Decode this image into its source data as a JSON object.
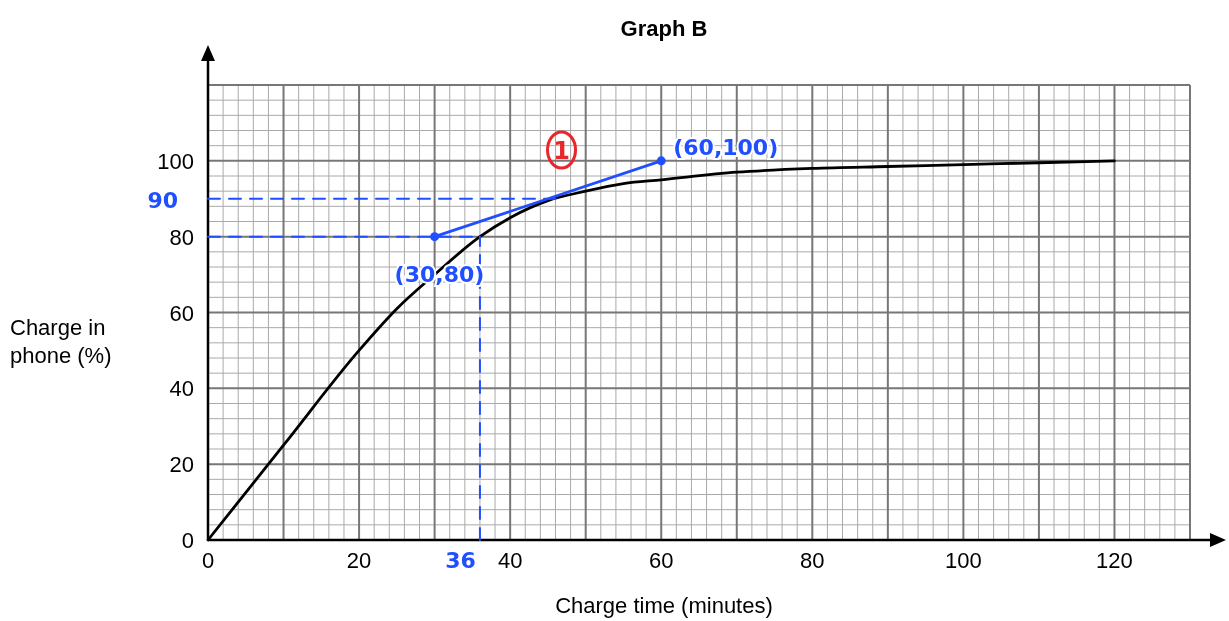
{
  "chart_data": {
    "type": "line",
    "title": "Graph B",
    "xlabel": "Charge time (minutes)",
    "ylabel": "Charge in\nphone (%)",
    "xlim": [
      0,
      130
    ],
    "ylim": [
      0,
      120
    ],
    "xticks": [
      0,
      {
        "value": 10,
        "label": null
      },
      20,
      {
        "value": 30,
        "label": null
      },
      40,
      {
        "value": 50,
        "label": null
      },
      60,
      {
        "value": 70,
        "label": null
      },
      80,
      {
        "value": 90,
        "label": null
      },
      100,
      {
        "value": 110,
        "label": null
      },
      120,
      {
        "value": 130,
        "label": null
      }
    ],
    "yticks": [
      0,
      20,
      40,
      60,
      80,
      100,
      {
        "value": 120,
        "label": null
      }
    ],
    "grid": true,
    "marker": "none",
    "line_style": "solid",
    "series": [
      {
        "color": "#000000",
        "x": [
          0,
          10,
          20,
          25,
          30,
          36,
          40,
          45,
          50,
          55,
          60,
          70,
          80,
          90,
          100,
          110,
          120
        ],
        "values": [
          0,
          25,
          50,
          61,
          70,
          80,
          85,
          89.5,
          92,
          94,
          95,
          97,
          98,
          98.5,
          99,
          99.5,
          100
        ]
      },
      {
        "color": "#1f4fff",
        "x": [
          30,
          60
        ],
        "values": [
          80,
          100
        ],
        "marker": "circle"
      },
      {
        "color": "#1f4fff",
        "x": [
          0,
          46
        ],
        "values": [
          90,
          90
        ],
        "line_style": "dashed"
      },
      {
        "color": "#1f4fff",
        "x": [
          0,
          36
        ],
        "values": [
          80,
          80
        ],
        "line_style": "dashed"
      },
      {
        "color": "#1f4fff",
        "x": [
          36,
          36
        ],
        "values": [
          0,
          80
        ],
        "line_style": "dashed"
      }
    ],
    "annotations": [
      {
        "text": "(30,80)",
        "x": 30,
        "y": 80
      },
      {
        "text": "(60,100)",
        "x": 60,
        "y": 100
      },
      {
        "text": "90",
        "x": 0,
        "y": 90
      },
      {
        "text": "36",
        "x": 36,
        "y": 0
      },
      "1"
    ]
  }
}
